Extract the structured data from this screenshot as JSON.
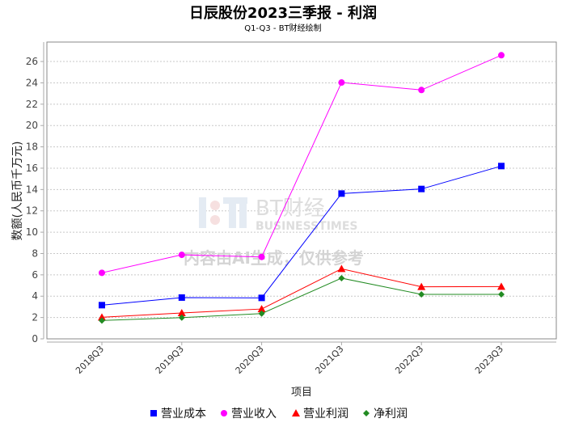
{
  "chart_data": {
    "type": "line",
    "title": "日辰股份2023三季报 - 利润",
    "subtitle": "Q1-Q3 - BT财经绘制",
    "xlabel": "项目",
    "ylabel": "数额(人民币千万元)",
    "ylim": [
      0,
      27.8
    ],
    "yticks": [
      0,
      2,
      4,
      6,
      8,
      10,
      12,
      14,
      16,
      18,
      20,
      22,
      24,
      26
    ],
    "grid": true,
    "legend_position": "bottom",
    "categories": [
      "2018Q3",
      "2019Q3",
      "2020Q3",
      "2021Q3",
      "2022Q3",
      "2023Q3"
    ],
    "series": [
      {
        "name": "营业成本",
        "color": "#0000ff",
        "marker": "square",
        "values": [
          3.16,
          3.87,
          3.84,
          13.62,
          14.05,
          16.2
        ]
      },
      {
        "name": "营业收入",
        "color": "#ff00ff",
        "marker": "circle",
        "values": [
          6.19,
          7.88,
          7.68,
          24.03,
          23.33,
          26.59
        ]
      },
      {
        "name": "营业利润",
        "color": "#ff0000",
        "marker": "triangle",
        "values": [
          2.02,
          2.43,
          2.8,
          6.57,
          4.88,
          4.9
        ]
      },
      {
        "name": "净利润",
        "color": "#228b22",
        "marker": "diamond",
        "values": [
          1.72,
          1.99,
          2.37,
          5.69,
          4.17,
          4.17
        ]
      }
    ],
    "watermark": {
      "logo": "BT财经",
      "logo_sub": "BUSINESSTIMES",
      "notice": "内容由AI生成，仅供参考"
    }
  }
}
